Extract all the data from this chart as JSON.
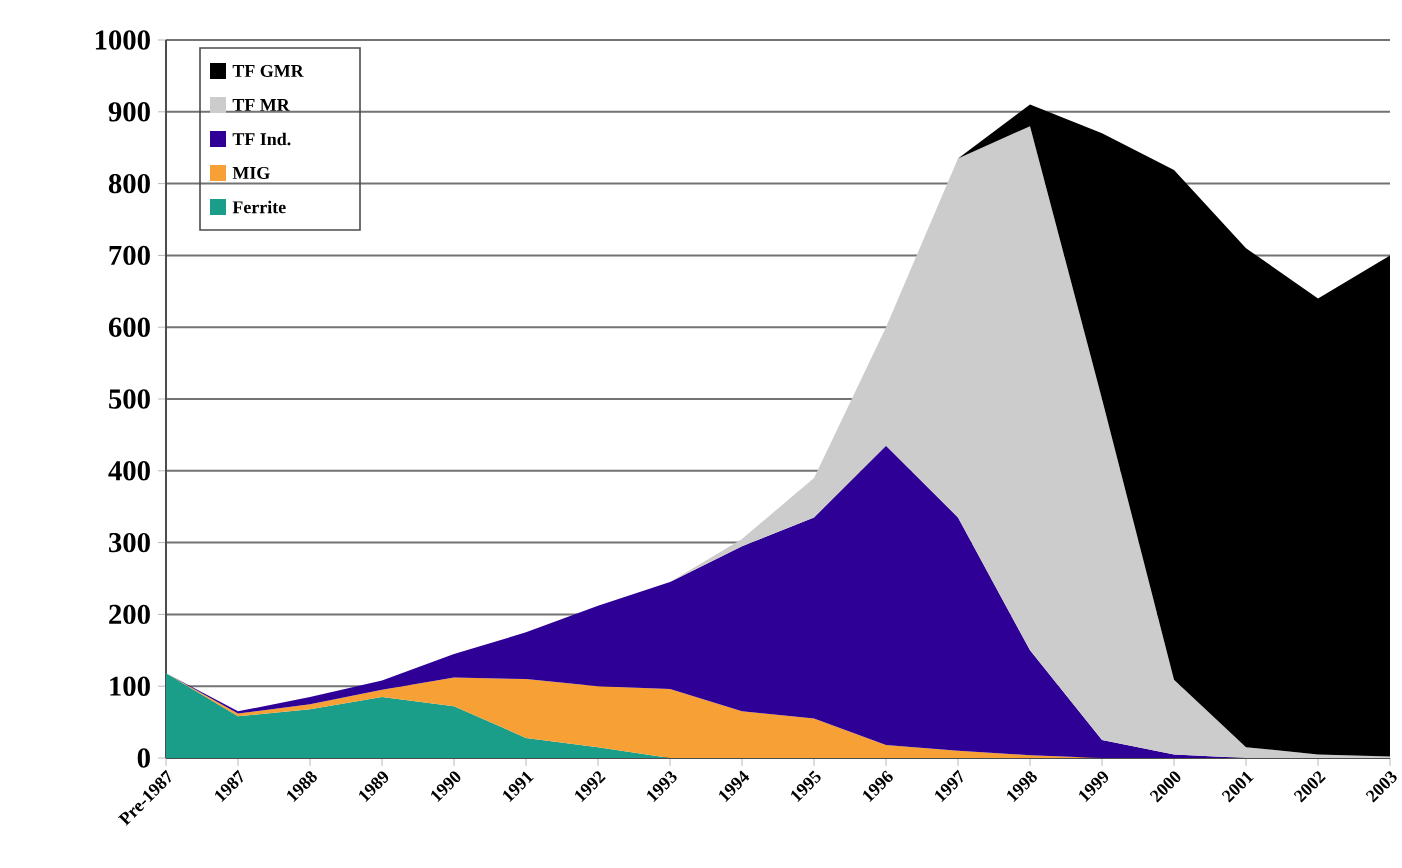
{
  "chart_data": {
    "type": "area",
    "stacked": true,
    "categories": [
      "Pre-1987",
      "1987",
      "1988",
      "1989",
      "1990",
      "1991",
      "1992",
      "1993",
      "1994",
      "1995",
      "1996",
      "1997",
      "1998",
      "1999",
      "2000",
      "2001",
      "2002",
      "2003"
    ],
    "series": [
      {
        "name": "Ferrite",
        "color": "#1a9e8a",
        "values": [
          118,
          58,
          68,
          85,
          72,
          28,
          15,
          0,
          null,
          null,
          null,
          null,
          null,
          null,
          null,
          null,
          null,
          null
        ]
      },
      {
        "name": "MIG",
        "color": "#f7a035",
        "values": [
          0,
          4,
          7,
          10,
          40,
          82,
          85,
          96,
          65,
          55,
          18,
          10,
          4,
          0,
          null,
          null,
          null,
          null
        ]
      },
      {
        "name": "TF Ind.",
        "color": "#2e0096",
        "values": [
          0,
          3,
          10,
          13,
          33,
          65,
          112,
          149,
          230,
          280,
          417,
          325,
          146,
          25,
          5,
          0,
          null,
          null
        ]
      },
      {
        "name": "TF MR",
        "color": "#cccccc",
        "values": [
          null,
          null,
          null,
          null,
          null,
          null,
          null,
          0,
          10,
          55,
          165,
          500,
          730,
          475,
          104,
          15,
          5,
          2
        ]
      },
      {
        "name": "TF GMR",
        "color": "#000000",
        "values": [
          null,
          null,
          null,
          null,
          null,
          null,
          null,
          null,
          null,
          null,
          null,
          0,
          30,
          370,
          710,
          695,
          635,
          698
        ]
      }
    ],
    "ylim": [
      0,
      1000
    ],
    "yticks": [
      0,
      100,
      200,
      300,
      400,
      500,
      600,
      700,
      800,
      900,
      1000
    ],
    "grid": "y",
    "legend": "top left"
  }
}
